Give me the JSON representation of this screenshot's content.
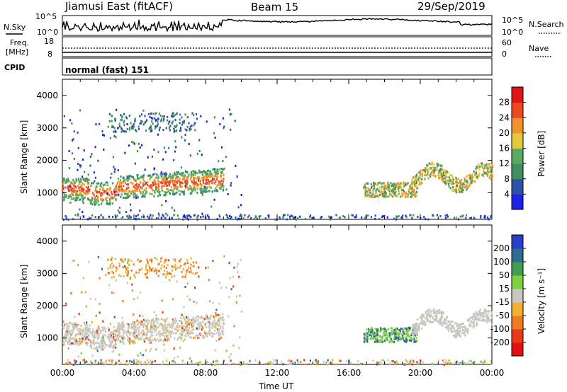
{
  "header": {
    "title": "Jiamusi East (fitACF)",
    "beam": "Beam 15",
    "date": "29/Sep/2019"
  },
  "noise_panel": {
    "left_label": "N.Sky",
    "right_label": "N.Search",
    "left_ticks": [
      "10^5",
      "10^0"
    ],
    "right_ticks": [
      "10^5",
      "10^0"
    ]
  },
  "freq_panel": {
    "label_line1": "Freq.",
    "label_line2": "[MHz]",
    "ticks": [
      "18",
      "8"
    ],
    "right_ticks": [
      "60",
      "0"
    ],
    "right_label": "Nave"
  },
  "cpid_panel": {
    "label": "CPID",
    "value": "normal (fast) 151"
  },
  "chart_data": [
    {
      "type": "heatmap",
      "ylabel": "Slant Range [km]",
      "ylim": [
        180,
        4500
      ],
      "yticks": [
        1000,
        2000,
        3000,
        4000
      ],
      "xticks": [
        "00:00",
        "04:00",
        "08:00",
        "12:00",
        "16:00",
        "20:00",
        "00:00"
      ],
      "xlabel": "",
      "colorbar": {
        "label": "Power [dB]",
        "ticks": [
          "4",
          "8",
          "12",
          "16",
          "20",
          "24",
          "28"
        ],
        "colors": [
          "#1f1fe6",
          "#2f4fa8",
          "#3f8f5f",
          "#5fa85f",
          "#e6c83a",
          "#f0922a",
          "#ea4a1f",
          "#e01414"
        ]
      }
    },
    {
      "type": "heatmap",
      "ylabel": "Slant Range [km]",
      "ylim": [
        180,
        4500
      ],
      "yticks": [
        1000,
        2000,
        3000,
        4000
      ],
      "xticks": [
        "00:00",
        "04:00",
        "08:00",
        "12:00",
        "16:00",
        "20:00",
        "00:00"
      ],
      "xlabel": "Time UT",
      "colorbar": {
        "label": "Velocity [m s⁻¹]",
        "ticks": [
          "200",
          "100",
          "50",
          "15",
          "-15",
          "-50",
          "-100",
          "-200"
        ],
        "colors": [
          "#2a3fc8",
          "#2f6a8f",
          "#3f9f4f",
          "#7fd03f",
          "#c8c8c0",
          "#f0b030",
          "#f07a1f",
          "#e83a18",
          "#e01010"
        ]
      }
    }
  ]
}
